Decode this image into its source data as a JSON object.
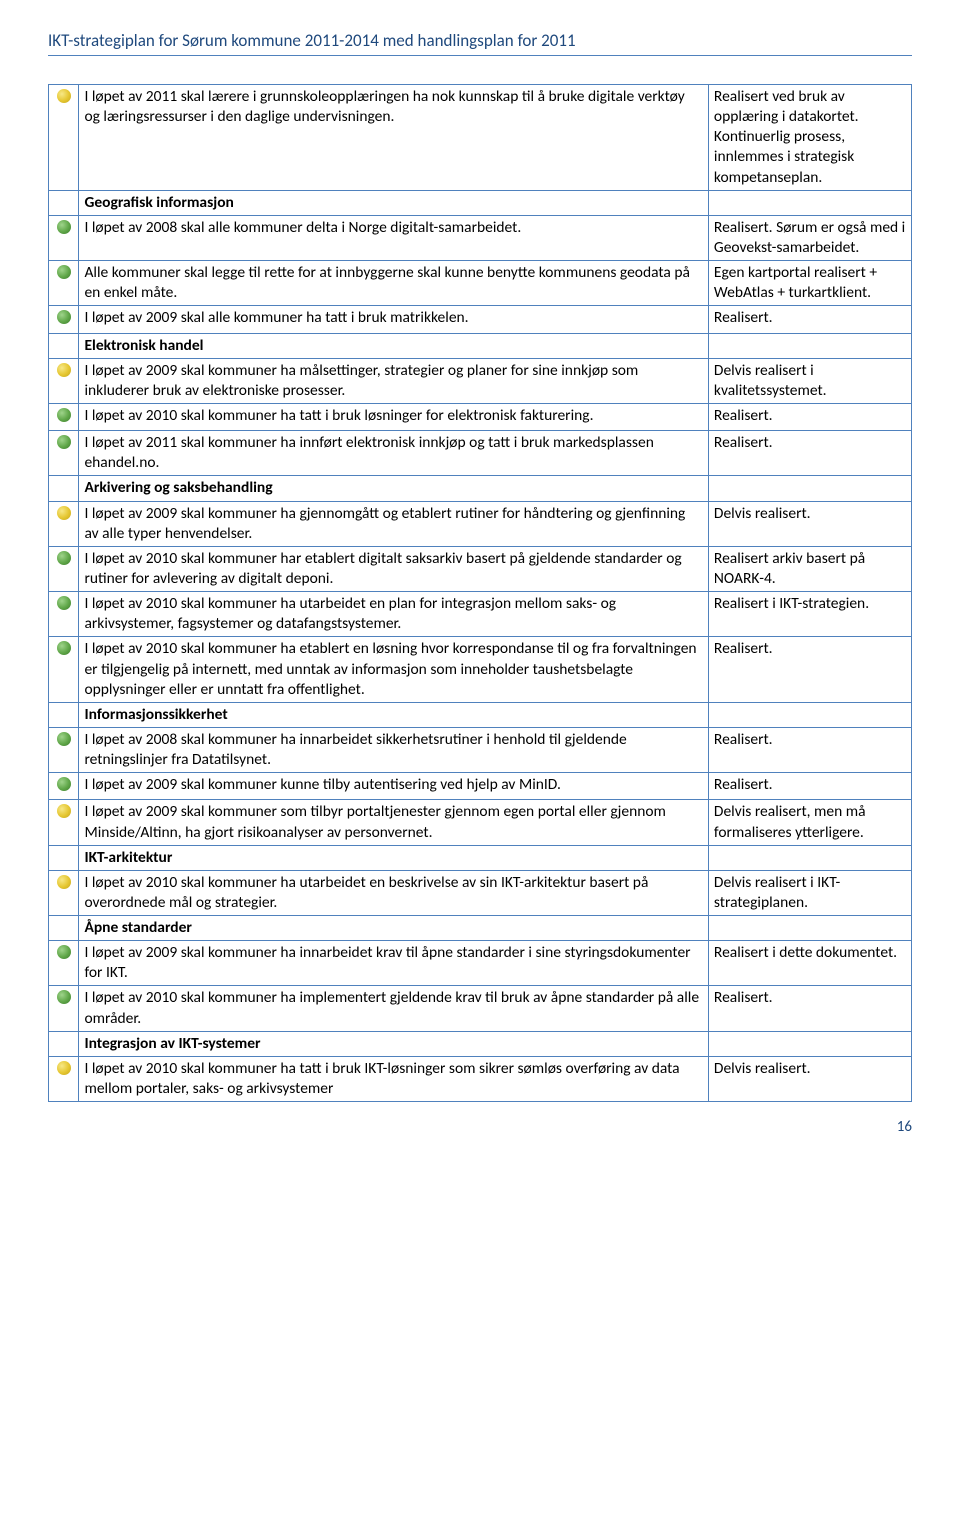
{
  "header": "IKT-strategiplan for Sørum kommune 2011-2014 med handlingsplan for 2011",
  "page_number": "16",
  "colors": {
    "yellow": "#e5c630",
    "green": "#5fa648",
    "yellow_grad": "radial-gradient(circle at 35% 35%, #f7e887, #e5c630 55%, #c1a420)",
    "green_grad": "radial-gradient(circle at 35% 35%, #9fd48b, #5fa648 55%, #3b7a2c)",
    "border": "#4f81bd",
    "header_text": "#1f497d"
  },
  "rows": [
    {
      "type": "item",
      "dot": "yellow",
      "desc": "I løpet av 2011 skal lærere i grunnskoleopplæringen ha nok kunnskap til å bruke digitale verktøy og læringsressurser i den daglige undervisningen.",
      "status": "Realisert ved bruk av opplæring i datakortet. Kontinuerlig prosess, innlemmes i strategisk kompetanseplan."
    },
    {
      "type": "section",
      "desc": "Geografisk informasjon"
    },
    {
      "type": "item",
      "dot": "green",
      "desc": "I løpet av 2008 skal alle kommuner delta i Norge digitalt-samarbeidet.",
      "status": "Realisert. Sørum er også med i Geovekst-samarbeidet."
    },
    {
      "type": "item",
      "dot": "green",
      "desc": "Alle kommuner skal legge til rette for at innbyggerne skal kunne benytte kommunens geodata på en enkel måte.",
      "status": "Egen kartportal realisert + WebAtlas + turkartklient."
    },
    {
      "type": "item",
      "dot": "green",
      "desc": "I løpet av 2009 skal alle kommuner ha tatt i bruk matrikkelen.",
      "status": "Realisert."
    },
    {
      "type": "section",
      "desc": "Elektronisk handel"
    },
    {
      "type": "item",
      "dot": "yellow",
      "desc": "I løpet av 2009 skal kommuner ha målsettinger, strategier og planer for sine innkjøp som inkluderer bruk av elektroniske prosesser.",
      "status": "Delvis realisert i kvalitetssystemet."
    },
    {
      "type": "item",
      "dot": "green",
      "desc": "I løpet av 2010 skal kommuner ha tatt i bruk løsninger for elektronisk fakturering.",
      "status": "Realisert."
    },
    {
      "type": "item",
      "dot": "green",
      "desc": "I løpet av 2011 skal kommuner ha innført elektronisk innkjøp og tatt i bruk markedsplassen ehandel.no.",
      "status": "Realisert."
    },
    {
      "type": "section",
      "desc": "Arkivering og saksbehandling"
    },
    {
      "type": "item",
      "dot": "yellow",
      "desc": "I løpet av 2009 skal kommuner ha gjennomgått og etablert rutiner for håndtering og gjenfinning av alle typer henvendelser.",
      "status": "Delvis realisert."
    },
    {
      "type": "item",
      "dot": "green",
      "desc": "I løpet av 2010 skal kommuner har etablert digitalt saksarkiv basert på gjeldende standarder og rutiner for avlevering av digitalt deponi.",
      "status": "Realisert arkiv basert på NOARK-4."
    },
    {
      "type": "item",
      "dot": "green",
      "desc": "I løpet av 2010 skal kommuner ha utarbeidet en plan for integrasjon mellom saks- og arkivsystemer, fagsystemer og datafangstsystemer.",
      "status": "Realisert i IKT-strategien."
    },
    {
      "type": "item",
      "dot": "green",
      "desc": "I løpet av 2010 skal kommuner ha etablert en løsning hvor korrespondanse til og fra forvaltningen er tilgjengelig på internett, med unntak av informasjon som inneholder taushetsbelagte opplysninger eller er unntatt fra offentlighet.",
      "status": "Realisert."
    },
    {
      "type": "section",
      "desc": "Informasjonssikkerhet"
    },
    {
      "type": "item",
      "dot": "green",
      "desc": "I løpet av 2008 skal kommuner ha innarbeidet sikkerhetsrutiner i henhold til gjeldende retningslinjer fra Datatilsynet.",
      "status": "Realisert."
    },
    {
      "type": "item",
      "dot": "green",
      "desc": "I løpet av 2009 skal kommuner kunne tilby autentisering ved hjelp av MinID.",
      "status": "Realisert."
    },
    {
      "type": "item",
      "dot": "yellow",
      "desc": "I løpet av 2009 skal kommuner som tilbyr portaltjenester gjennom egen portal eller gjennom Minside/Altinn, ha gjort risikoanalyser av personvernet.",
      "status": "Delvis realisert, men må formaliseres ytterligere."
    },
    {
      "type": "section",
      "desc": "IKT-arkitektur"
    },
    {
      "type": "item",
      "dot": "yellow",
      "desc": "I løpet av 2010 skal kommuner ha utarbeidet en beskrivelse av sin IKT-arkitektur basert på overordnede mål og strategier.",
      "status": "Delvis realisert i IKT-strategiplanen."
    },
    {
      "type": "section",
      "desc": "Åpne standarder"
    },
    {
      "type": "item",
      "dot": "green",
      "desc": "I løpet av 2009 skal kommuner ha innarbeidet krav til åpne standarder i sine styringsdokumenter for IKT.",
      "status": "Realisert i dette dokumentet."
    },
    {
      "type": "item",
      "dot": "green",
      "desc": "I løpet av 2010 skal kommuner ha implementert gjeldende krav til bruk av åpne standarder på alle områder.",
      "status": "Realisert."
    },
    {
      "type": "section",
      "desc": "Integrasjon av IKT-systemer"
    },
    {
      "type": "item",
      "dot": "yellow",
      "desc": "I løpet av 2010 skal kommuner ha tatt i bruk IKT-løsninger som sikrer sømløs overføring av data mellom portaler, saks- og arkivsystemer",
      "status": "Delvis realisert."
    }
  ]
}
